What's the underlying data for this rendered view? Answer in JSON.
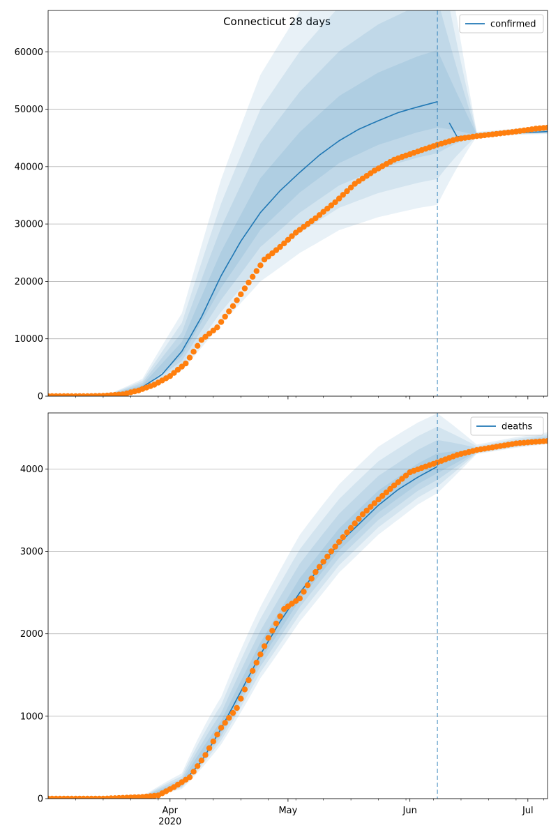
{
  "figure": {
    "suptitle": "Connecticut 28 days"
  },
  "chart_data": [
    {
      "type": "line",
      "title": "",
      "xlabel": "",
      "ylabel": "",
      "legend": {
        "placement": "top-right",
        "entries": [
          "confirmed"
        ]
      },
      "grid": "y",
      "xlim": [
        "2020-03-01",
        "2020-07-06"
      ],
      "ylim": [
        0,
        67200
      ],
      "yticks": [
        0,
        10000,
        20000,
        30000,
        40000,
        50000,
        60000
      ],
      "forecast_start": "2020-06-08",
      "series": [
        {
          "name": "confirmed",
          "kind": "model-line",
          "color": "#1f77b4",
          "x": [
            "2020-03-01",
            "2020-03-10",
            "2020-03-15",
            "2020-03-20",
            "2020-03-25",
            "2020-03-30",
            "2020-04-04",
            "2020-04-09",
            "2020-04-14",
            "2020-04-19",
            "2020-04-24",
            "2020-04-29",
            "2020-05-04",
            "2020-05-09",
            "2020-05-14",
            "2020-05-19",
            "2020-05-24",
            "2020-05-29",
            "2020-06-03",
            "2020-06-08",
            "2020-06-13",
            "2020-06-18",
            "2020-06-23",
            "2020-06-28",
            "2020-07-03",
            "2020-07-06"
          ],
          "y": [
            0,
            0,
            30,
            300,
            1600,
            3800,
            7800,
            13800,
            21000,
            27000,
            32000,
            35800,
            39000,
            42000,
            44500,
            46500,
            48000,
            49400,
            50400,
            51300,
            45200,
            45500,
            45800,
            45900,
            46000,
            46100
          ]
        },
        {
          "kind": "observed-points",
          "color": "#ff7f0e",
          "x": [
            "2020-03-01",
            "2020-03-10",
            "2020-03-15",
            "2020-03-20",
            "2020-03-24",
            "2020-03-28",
            "2020-04-01",
            "2020-04-05",
            "2020-04-09",
            "2020-04-13",
            "2020-04-17",
            "2020-04-21",
            "2020-04-25",
            "2020-04-29",
            "2020-05-03",
            "2020-05-08",
            "2020-05-13",
            "2020-05-18",
            "2020-05-23",
            "2020-05-28",
            "2020-06-02",
            "2020-06-08",
            "2020-06-13",
            "2020-06-18",
            "2020-06-23",
            "2020-06-28",
            "2020-07-03",
            "2020-07-06"
          ],
          "y": [
            0,
            0,
            60,
            330,
            1000,
            2000,
            3500,
            5700,
            9800,
            12000,
            15700,
            19800,
            23800,
            26000,
            28500,
            31000,
            33800,
            37000,
            39300,
            41200,
            42400,
            43800,
            44800,
            45300,
            45700,
            46100,
            46600,
            46800
          ]
        }
      ],
      "bands": {
        "x": [
          "2020-03-01",
          "2020-03-15",
          "2020-03-25",
          "2020-04-04",
          "2020-04-14",
          "2020-04-24",
          "2020-05-04",
          "2020-05-14",
          "2020-05-24",
          "2020-06-03",
          "2020-06-08",
          "2020-06-18",
          "2020-06-28",
          "2020-07-06"
        ],
        "median": [
          0,
          30,
          1600,
          7800,
          21000,
          32000,
          39000,
          44500,
          48000,
          50400,
          51300,
          45500,
          45900,
          46100
        ],
        "spread": [
          0.04,
          0.55,
          0.9,
          0.85,
          0.8,
          0.75,
          0.72,
          0.7,
          0.7,
          0.7,
          0.7,
          0.012,
          0.016,
          0.018
        ],
        "levels": [
          0.25,
          0.5,
          0.75,
          1.0
        ],
        "color": "#1f77b4"
      }
    },
    {
      "type": "line",
      "title": "",
      "xlabel": "",
      "ylabel": "",
      "legend": {
        "placement": "top-right",
        "entries": [
          "deaths"
        ]
      },
      "grid": "y",
      "xlim": [
        "2020-03-01",
        "2020-07-06"
      ],
      "ylim": [
        0,
        4680
      ],
      "yticks": [
        0,
        1000,
        2000,
        3000,
        4000
      ],
      "xticks": [
        {
          "date": "2020-04-01",
          "label": "Apr",
          "sublabel": "2020"
        },
        {
          "date": "2020-05-01",
          "label": "May"
        },
        {
          "date": "2020-06-01",
          "label": "Jun"
        },
        {
          "date": "2020-07-01",
          "label": "Jul"
        }
      ],
      "forecast_start": "2020-06-08",
      "series": [
        {
          "name": "deaths",
          "kind": "model-line",
          "color": "#1f77b4",
          "x": [
            "2020-03-01",
            "2020-03-15",
            "2020-03-25",
            "2020-03-30",
            "2020-04-04",
            "2020-04-09",
            "2020-04-14",
            "2020-04-19",
            "2020-04-24",
            "2020-04-29",
            "2020-05-04",
            "2020-05-09",
            "2020-05-14",
            "2020-05-19",
            "2020-05-24",
            "2020-05-29",
            "2020-06-03",
            "2020-06-08",
            "2020-06-13",
            "2020-06-18",
            "2020-06-23",
            "2020-06-28",
            "2020-07-03",
            "2020-07-06"
          ],
          "y": [
            0,
            0,
            15,
            60,
            180,
            450,
            850,
            1300,
            1750,
            2150,
            2500,
            2800,
            3100,
            3330,
            3560,
            3750,
            3900,
            4030,
            4170,
            4220,
            4270,
            4300,
            4330,
            4350
          ]
        },
        {
          "kind": "observed-points",
          "color": "#ff7f0e",
          "x": [
            "2020-03-01",
            "2020-03-15",
            "2020-03-25",
            "2020-03-29",
            "2020-04-02",
            "2020-04-06",
            "2020-04-10",
            "2020-04-14",
            "2020-04-18",
            "2020-04-22",
            "2020-04-26",
            "2020-04-30",
            "2020-05-04",
            "2020-05-08",
            "2020-05-12",
            "2020-05-16",
            "2020-05-20",
            "2020-05-24",
            "2020-05-28",
            "2020-06-01",
            "2020-06-05",
            "2020-06-08",
            "2020-06-13",
            "2020-06-18",
            "2020-06-23",
            "2020-06-28",
            "2020-07-03",
            "2020-07-06"
          ],
          "y": [
            0,
            0,
            20,
            40,
            140,
            260,
            530,
            860,
            1100,
            1550,
            1950,
            2300,
            2430,
            2750,
            3000,
            3230,
            3450,
            3630,
            3800,
            3960,
            4030,
            4080,
            4170,
            4230,
            4270,
            4310,
            4330,
            4340
          ]
        }
      ],
      "bands": {
        "x": [
          "2020-03-01",
          "2020-03-25",
          "2020-04-04",
          "2020-04-14",
          "2020-04-24",
          "2020-05-04",
          "2020-05-14",
          "2020-05-24",
          "2020-06-03",
          "2020-06-08",
          "2020-06-18",
          "2020-06-28",
          "2020-07-06"
        ],
        "median": [
          0,
          15,
          180,
          850,
          1750,
          2500,
          3100,
          3560,
          3900,
          4030,
          4220,
          4300,
          4350
        ],
        "spread": [
          0.04,
          0.9,
          0.7,
          0.45,
          0.33,
          0.28,
          0.23,
          0.2,
          0.17,
          0.16,
          0.018,
          0.02,
          0.022
        ],
        "levels": [
          0.25,
          0.5,
          0.75,
          1.0
        ],
        "color": "#1f77b4"
      }
    }
  ]
}
